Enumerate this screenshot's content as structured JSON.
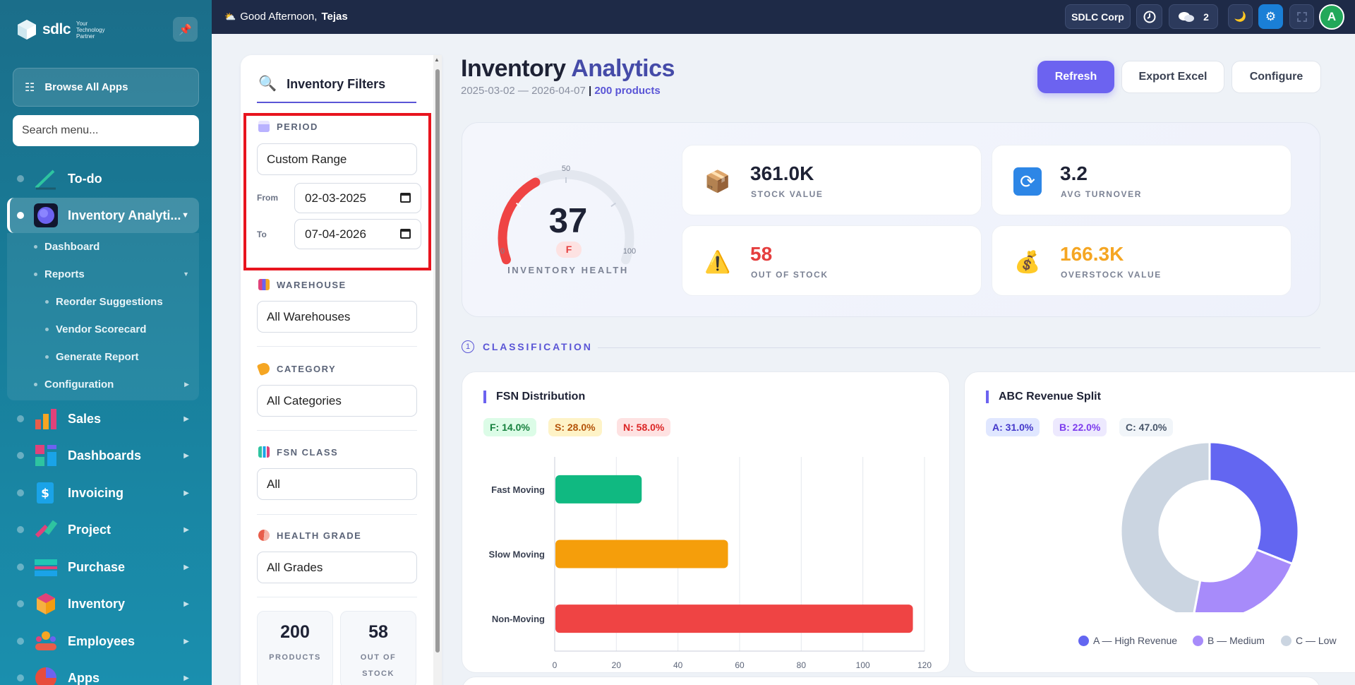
{
  "sidebar": {
    "brand": "sdlc",
    "brand_tag": [
      "Your",
      "Technology",
      "Partner"
    ],
    "browse_label": "Browse All Apps",
    "search_placeholder": "Search menu...",
    "nav": [
      {
        "label": "To-do",
        "color": "#2ec4a0"
      },
      {
        "label": "Inventory Analyti...",
        "color": "#6c63f0",
        "active": true
      },
      {
        "label": "Sales",
        "color": "#f5a623"
      },
      {
        "label": "Dashboards",
        "color": "#e0427a"
      },
      {
        "label": "Invoicing",
        "color": "#1aa3e8"
      },
      {
        "label": "Project",
        "color": "#2ec4a0"
      },
      {
        "label": "Purchase",
        "color": "#1fc6b4"
      },
      {
        "label": "Inventory",
        "color": "#f39c12"
      },
      {
        "label": "Employees",
        "color": "#e85d4a"
      },
      {
        "label": "Apps",
        "color": "#e74c3c"
      }
    ],
    "submenu": {
      "dashboard": "Dashboard",
      "reports": "Reports",
      "reorder": "Reorder Suggestions",
      "vendor": "Vendor Scorecard",
      "generate": "Generate Report",
      "configuration": "Configuration"
    }
  },
  "topbar": {
    "greeting": "Good Afternoon,",
    "user": "Tejas",
    "company": "SDLC Corp",
    "messages_count": "2",
    "avatar_letter": "A"
  },
  "filters": {
    "title": "Inventory Filters",
    "period_label": "PERIOD",
    "period_value": "Custom Range",
    "from_label": "From",
    "from_value": "02-03-2025",
    "to_label": "To",
    "to_value": "07-04-2026",
    "warehouse_label": "WAREHOUSE",
    "warehouse_value": "All Warehouses",
    "category_label": "CATEGORY",
    "category_value": "All Categories",
    "fsn_label": "FSN CLASS",
    "fsn_value": "All",
    "grade_label": "HEALTH GRADE",
    "grade_value": "All Grades",
    "stats": [
      {
        "value": "200",
        "label": "PRODUCTS"
      },
      {
        "value": "58",
        "label": "OUT OF STOCK"
      }
    ]
  },
  "header": {
    "title_main": "Inventory",
    "title_accent": "Analytics",
    "date_range": "2025-03-02 — 2026-04-07",
    "separator": "|",
    "products": "200 products",
    "refresh": "Refresh",
    "export": "Export Excel",
    "configure": "Configure"
  },
  "health": {
    "score": 37,
    "grade": "F",
    "label": "INVENTORY HEALTH",
    "min": "0",
    "mid": "50",
    "max": "100"
  },
  "kpis": [
    {
      "value": "361.0K",
      "label": "STOCK VALUE",
      "icon": "box-icon",
      "color": "#1e2235"
    },
    {
      "value": "3.2",
      "label": "AVG TURNOVER",
      "icon": "refresh-icon",
      "color": "#1e2235"
    },
    {
      "value": "58",
      "label": "OUT OF STOCK",
      "icon": "warning-icon",
      "color": "#e53e3e"
    },
    {
      "value": "166.3K",
      "label": "OVERSTOCK VALUE",
      "icon": "money-bag-icon",
      "color": "#f5a623"
    }
  ],
  "section": {
    "num": "1",
    "title": "CLASSIFICATION"
  },
  "fsn": {
    "title": "FSN Distribution",
    "pills": [
      "F: 14.0%",
      "S: 28.0%",
      "N: 58.0%"
    ]
  },
  "abc": {
    "title": "ABC Revenue Split",
    "pills": [
      "A: 31.0%",
      "B: 22.0%",
      "C: 47.0%"
    ]
  },
  "chart_data": [
    {
      "type": "bar",
      "orientation": "horizontal",
      "title": "FSN Distribution",
      "categories": [
        "Fast Moving",
        "Slow Moving",
        "Non-Moving"
      ],
      "values": [
        28,
        56,
        116
      ],
      "colors": [
        "#10b981",
        "#f59e0b",
        "#ef4444"
      ],
      "xlim": [
        0,
        120
      ],
      "xticks": [
        "0",
        "20",
        "40",
        "60",
        "80",
        "100",
        "120"
      ],
      "grid": true
    },
    {
      "type": "pie",
      "style": "donut",
      "title": "ABC Revenue Split",
      "categories": [
        "A — High Revenue",
        "B — Medium",
        "C — Low"
      ],
      "values": [
        31,
        22,
        47
      ],
      "colors": [
        "#6366f1",
        "#a78bfa",
        "#cbd5e1"
      ],
      "legend": "bottom"
    }
  ]
}
